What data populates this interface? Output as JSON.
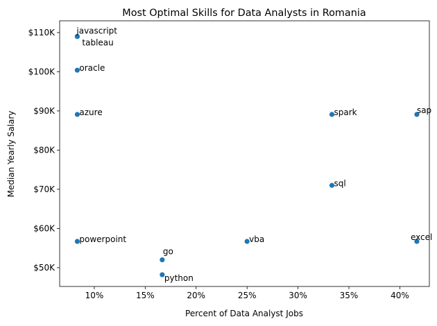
{
  "chart_data": {
    "type": "scatter",
    "title": "Most Optimal Skills for Data Analysts in Romania",
    "xlabel": "Percent of Data Analyst Jobs",
    "ylabel": "Median Yearly Salary",
    "xlim": [
      6.6,
      42.9
    ],
    "ylim": [
      45200,
      113000
    ],
    "xticks": [
      10,
      15,
      20,
      25,
      30,
      35,
      40
    ],
    "xtick_labels": [
      "10%",
      "15%",
      "20%",
      "25%",
      "30%",
      "35%",
      "40%"
    ],
    "yticks": [
      50000,
      60000,
      70000,
      80000,
      90000,
      100000,
      110000
    ],
    "ytick_labels": [
      "$50K",
      "$60K",
      "$70K",
      "$80K",
      "$90K",
      "$100K",
      "$110K"
    ],
    "grid": false,
    "color": "#1f77b4",
    "points": [
      {
        "label": "javascript",
        "x": 8.33,
        "y": 109000
      },
      {
        "label": "tableau",
        "x": 8.33,
        "y": 109000
      },
      {
        "label": "oracle",
        "x": 8.33,
        "y": 100400
      },
      {
        "label": "azure",
        "x": 8.33,
        "y": 89100
      },
      {
        "label": "powerpoint",
        "x": 8.33,
        "y": 56700
      },
      {
        "label": "go",
        "x": 16.67,
        "y": 52000
      },
      {
        "label": "python",
        "x": 16.67,
        "y": 48200
      },
      {
        "label": "vba",
        "x": 25.0,
        "y": 56700
      },
      {
        "label": "spark",
        "x": 33.33,
        "y": 89100
      },
      {
        "label": "sql",
        "x": 33.33,
        "y": 71000
      },
      {
        "label": "sap",
        "x": 41.67,
        "y": 89100
      },
      {
        "label": "excel",
        "x": 41.67,
        "y": 56700
      }
    ]
  }
}
